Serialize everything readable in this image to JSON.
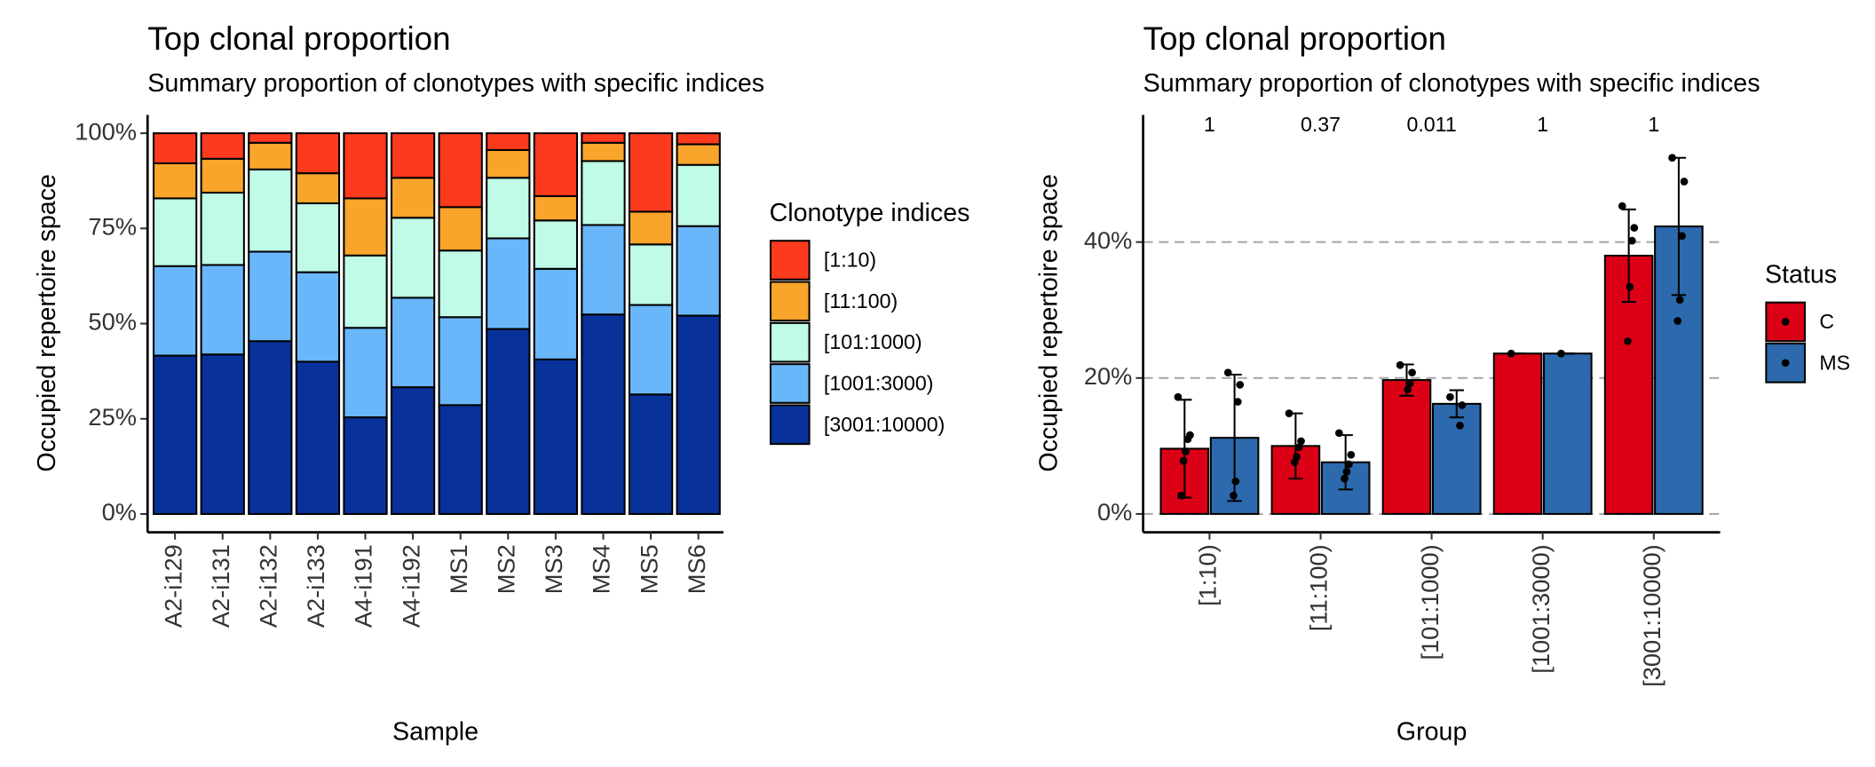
{
  "chart_data": [
    {
      "type": "stacked_bar",
      "title": "Top clonal proportion",
      "subtitle": "Summary proportion of clonotypes with specific indices",
      "x_label": "Sample",
      "y_label": "Occupied repertoire space",
      "legend_title": "Clonotype indices",
      "categories": [
        "A2-i129",
        "A2-i131",
        "A2-i132",
        "A2-i133",
        "A4-i191",
        "A4-i192",
        "MS1",
        "MS2",
        "MS3",
        "MS4",
        "MS5",
        "MS6"
      ],
      "series": [
        {
          "name": "[1:10)",
          "color": "#fb3a1e",
          "values": [
            7.9,
            6.7,
            2.5,
            10.5,
            17.1,
            11.7,
            19.4,
            4.4,
            16.5,
            2.5,
            20.6,
            2.9
          ]
        },
        {
          "name": "[11:100)",
          "color": "#f9a42a",
          "values": [
            9.2,
            8.9,
            7.0,
            7.9,
            15.0,
            10.5,
            11.4,
            7.3,
            6.4,
            4.8,
            8.6,
            5.4
          ]
        },
        {
          "name": "[101:1000)",
          "color": "#bffbe6",
          "values": [
            17.8,
            19.0,
            21.6,
            18.1,
            19.0,
            21.0,
            17.5,
            15.9,
            12.7,
            16.8,
            15.9,
            16.1
          ]
        },
        {
          "name": "[1001:3000)",
          "color": "#69b6fb",
          "values": [
            23.5,
            23.5,
            23.5,
            23.5,
            23.5,
            23.5,
            23.1,
            23.8,
            23.8,
            23.5,
            23.5,
            23.5
          ]
        },
        {
          "name": "[3001:10000)",
          "color": "#08329a",
          "values": [
            41.6,
            41.9,
            45.4,
            40.0,
            25.4,
            33.3,
            28.6,
            48.6,
            40.6,
            52.4,
            31.4,
            52.1
          ]
        }
      ],
      "ylim": [
        -4.8,
        104.8
      ],
      "yticks": [
        {
          "value": 0,
          "label": "0%"
        },
        {
          "value": 25,
          "label": "25%"
        },
        {
          "value": 50,
          "label": "50%"
        },
        {
          "value": 75,
          "label": "75%"
        },
        {
          "value": 100,
          "label": "100%"
        }
      ],
      "legend": "right"
    },
    {
      "type": "dodged_bar",
      "title": "Top clonal proportion",
      "subtitle": "Summary proportion of clonotypes with specific indices",
      "x_label": "Group",
      "y_label": "Occupied repertoire space",
      "legend_title": "Status",
      "categories": [
        "[1:10)",
        "[11:100)",
        "[101:1000)",
        "[1001:3000)",
        "[3001:10000)"
      ],
      "annotations": [
        "1",
        "0.37",
        "0.011",
        "1",
        "1"
      ],
      "series": [
        {
          "name": "C",
          "color": "#dc0017",
          "values": [
            9.6,
            10.0,
            19.7,
            23.6,
            38.0
          ],
          "errors": [
            7.2,
            4.8,
            2.3,
            0,
            6.8
          ],
          "points": [
            [
              17.2,
              11.6,
              11.0,
              9.2,
              7.8,
              2.7
            ],
            [
              14.8,
              10.7,
              9.8,
              8.4,
              7.6
            ],
            [
              21.9,
              20.8,
              19.2,
              18.3
            ],
            [
              23.6
            ],
            [
              45.3,
              42.1,
              40.2,
              33.4,
              25.4
            ]
          ]
        },
        {
          "name": "MS",
          "color": "#2d6aad",
          "values": [
            11.2,
            7.6,
            16.2,
            23.6,
            42.3
          ],
          "errors": [
            9.3,
            4.0,
            2.0,
            0,
            10.1
          ],
          "points": [
            [
              20.8,
              19.0,
              16.5,
              4.8,
              2.7
            ],
            [
              11.9,
              8.7,
              7.3,
              6.2,
              5.2
            ],
            [
              17.2,
              16.0,
              13.0
            ],
            [
              23.6
            ],
            [
              52.4,
              48.9,
              40.9,
              31.5,
              28.4
            ]
          ]
        }
      ],
      "ylim": [
        -2.7,
        58.7
      ],
      "yticks": [
        {
          "value": 0,
          "label": "0%"
        },
        {
          "value": 20,
          "label": "20%"
        },
        {
          "value": 40,
          "label": "40%"
        }
      ],
      "grid": true,
      "legend": "right"
    }
  ]
}
